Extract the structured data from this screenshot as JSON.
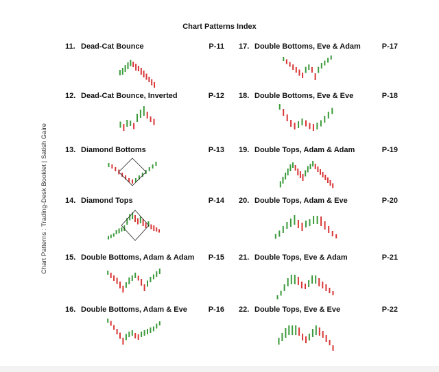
{
  "title": "Chart Patterns Index",
  "side_label": "Chart Patterns : Trading-Desk Booklet | Satish Gaire",
  "colors": {
    "bull": "#3a9a3a",
    "bear": "#d93535",
    "frame": "#222222"
  },
  "entries": [
    {
      "num": "11.",
      "title": "Dead-Cat Bounce",
      "page": "P-11",
      "pattern": "up-then-steady-decline"
    },
    {
      "num": "12.",
      "title": "Dead-Cat Bounce, Inverted",
      "page": "P-12",
      "pattern": "steady-rise-then-drop"
    },
    {
      "num": "13.",
      "title": "Diamond Bottoms",
      "page": "P-13",
      "pattern": "diamond-bottom"
    },
    {
      "num": "14.",
      "title": "Diamond Tops",
      "page": "P-14",
      "pattern": "diamond-top"
    },
    {
      "num": "15.",
      "title": "Double Bottoms, Adam & Adam",
      "page": "P-15",
      "pattern": "double-bottom-sharp-sharp"
    },
    {
      "num": "16.",
      "title": "Double Bottoms, Adam & Eve",
      "page": "P-16",
      "pattern": "double-bottom-sharp-round"
    },
    {
      "num": "17.",
      "title": "Double Bottoms, Eve & Adam",
      "page": "P-17",
      "pattern": "double-bottom-round-sharp"
    },
    {
      "num": "18.",
      "title": "Double Bottoms, Eve & Eve",
      "page": "P-18",
      "pattern": "double-bottom-round-round"
    },
    {
      "num": "19.",
      "title": "Double Tops, Adam & Adam",
      "page": "P-19",
      "pattern": "double-top-sharp-sharp"
    },
    {
      "num": "20.",
      "title": "Double Tops, Adam & Eve",
      "page": "P-20",
      "pattern": "double-top-sharp-round"
    },
    {
      "num": "21.",
      "title": "Double Tops, Eve & Adam",
      "page": "P-21",
      "pattern": "double-top-round-sharp"
    },
    {
      "num": "22.",
      "title": "Double Tops, Eve & Eve",
      "page": "P-22",
      "pattern": "double-top-round-round"
    }
  ]
}
